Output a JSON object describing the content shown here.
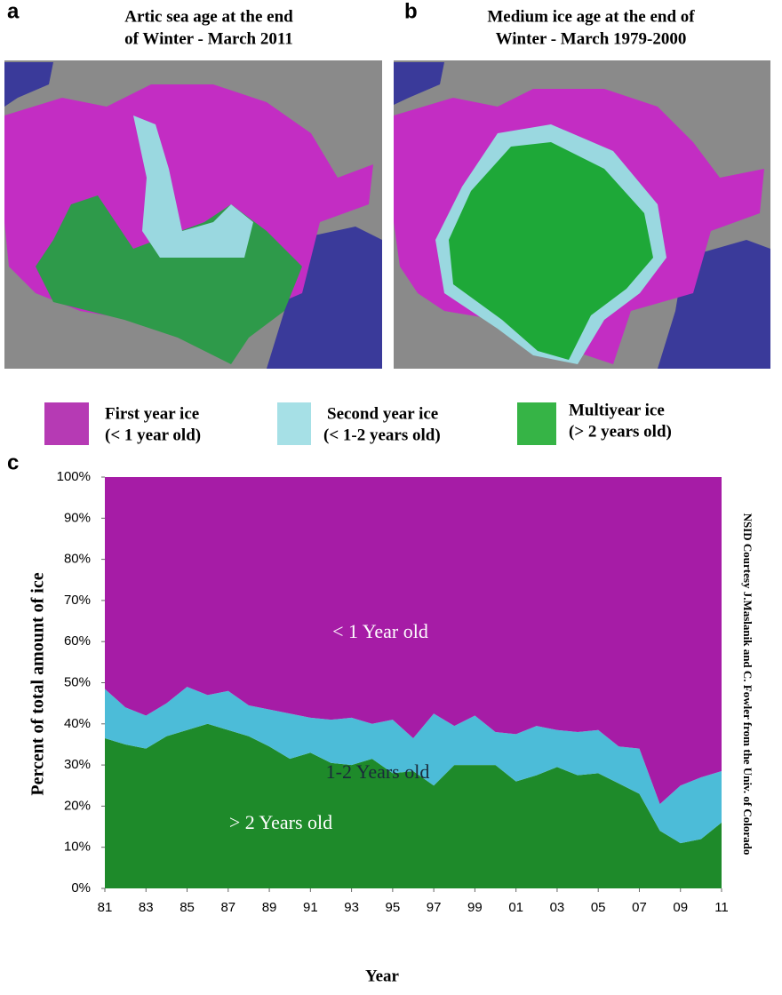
{
  "panels": [
    {
      "letter": "a",
      "title_lines": [
        "Artic sea age at the end",
        "of Winter - March 2011"
      ]
    },
    {
      "letter": "b",
      "title_lines": [
        "Medium ice age at the end of",
        "Winter - March 1979-2000"
      ]
    }
  ],
  "legend": [
    {
      "label": "First year ice",
      "sublabel": "(< 1 year old)"
    },
    {
      "label": "Second year ice",
      "sublabel": "(< 1-2 years old)"
    },
    {
      "label": "Multiyear ice",
      "sublabel": "(> 2 years old)"
    }
  ],
  "chart_data": {
    "type": "stacked_area",
    "panel_label": "c",
    "x_label": "Year",
    "y_label": "Percent of total amount of ice",
    "side_note": "NSID Courtesy J.Maslanik and C. Fowler from the Univ. of Colorado",
    "x": [
      1981,
      1982,
      1983,
      1984,
      1985,
      1986,
      1987,
      1988,
      1989,
      1990,
      1991,
      1992,
      1993,
      1994,
      1995,
      1996,
      1997,
      1998,
      1999,
      2000,
      2001,
      2002,
      2003,
      2004,
      2005,
      2006,
      2007,
      2008,
      2009,
      2010,
      2011
    ],
    "xlim": [
      1981,
      2011
    ],
    "xticks": [
      {
        "value": 1981,
        "label": "81"
      },
      {
        "value": 1983,
        "label": "83"
      },
      {
        "value": 1985,
        "label": "85"
      },
      {
        "value": 1987,
        "label": "87"
      },
      {
        "value": 1989,
        "label": "89"
      },
      {
        "value": 1991,
        "label": "91"
      },
      {
        "value": 1993,
        "label": "93"
      },
      {
        "value": 1995,
        "label": "95"
      },
      {
        "value": 1997,
        "label": "97"
      },
      {
        "value": 1999,
        "label": "99"
      },
      {
        "value": 2001,
        "label": "01"
      },
      {
        "value": 2003,
        "label": "03"
      },
      {
        "value": 2005,
        "label": "05"
      },
      {
        "value": 2007,
        "label": "07"
      },
      {
        "value": 2009,
        "label": "09"
      },
      {
        "value": 2011,
        "label": "11"
      }
    ],
    "ylim": [
      0,
      100
    ],
    "yticks": [
      {
        "value": 0,
        "label": "0%"
      },
      {
        "value": 10,
        "label": "10%"
      },
      {
        "value": 20,
        "label": "20%"
      },
      {
        "value": 30,
        "label": "30%"
      },
      {
        "value": 40,
        "label": "40%"
      },
      {
        "value": 50,
        "label": "50%"
      },
      {
        "value": 60,
        "label": "60%"
      },
      {
        "value": 70,
        "label": "70%"
      },
      {
        "value": 80,
        "label": "80%"
      },
      {
        "value": 90,
        "label": "90%"
      },
      {
        "value": 100,
        "label": "100%"
      }
    ],
    "series": [
      {
        "color": "#1e8a2a",
        "values": [
          36.5,
          35,
          34,
          37,
          38.5,
          40,
          38.5,
          37,
          34.5,
          31.5,
          33,
          30.5,
          30,
          31.5,
          28,
          28.5,
          25,
          30,
          30,
          30,
          26,
          27.5,
          29.5,
          27.5,
          28,
          25.5,
          23,
          14,
          11,
          12,
          16
        ]
      },
      {
        "color": "#4cbcd8",
        "values": [
          12,
          9,
          8,
          8,
          10.5,
          7,
          9.5,
          7.5,
          9,
          11,
          8.5,
          10.5,
          11.5,
          8.5,
          13,
          8,
          17.5,
          9.5,
          12,
          8,
          11.5,
          12,
          9,
          10.5,
          10.5,
          9,
          11,
          6.5,
          14,
          15,
          12.5
        ]
      },
      {
        "color": "#a61ca6",
        "values": [
          51.5,
          56,
          58,
          55,
          51,
          53,
          52,
          55.5,
          56.5,
          57.5,
          58.5,
          59,
          58.5,
          60,
          59,
          63.5,
          57.5,
          60.5,
          58,
          62,
          62.5,
          60.5,
          61.5,
          62,
          61.5,
          65.5,
          66,
          79.5,
          75,
          73,
          71.5
        ]
      }
    ],
    "annotations": [
      {
        "text": "< 1 Year old"
      },
      {
        "text": "1-2 Years old"
      },
      {
        "text": "> 2 Years old"
      }
    ]
  }
}
